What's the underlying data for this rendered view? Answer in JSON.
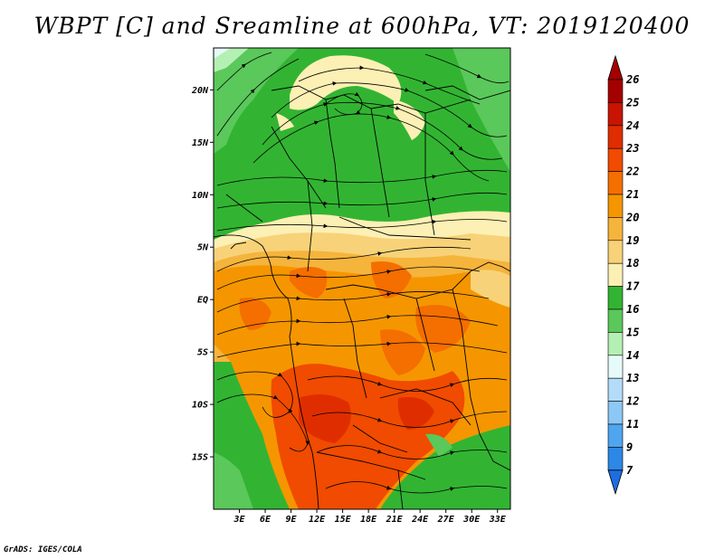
{
  "title": "WBPT [C] and Sreamline at 600hPa, VT: 2019120400",
  "credit": "GrADS: IGES/COLA",
  "map": {
    "lat_ticks": [
      {
        "value": 20,
        "label": "20N"
      },
      {
        "value": 15,
        "label": "15N"
      },
      {
        "value": 10,
        "label": "10N"
      },
      {
        "value": 5,
        "label": "5N"
      },
      {
        "value": 0,
        "label": "EQ"
      },
      {
        "value": -5,
        "label": "5S"
      },
      {
        "value": -10,
        "label": "10S"
      },
      {
        "value": -15,
        "label": "15S"
      }
    ],
    "lon_ticks": [
      {
        "value": 3,
        "label": "3E"
      },
      {
        "value": 6,
        "label": "6E"
      },
      {
        "value": 9,
        "label": "9E"
      },
      {
        "value": 12,
        "label": "12E"
      },
      {
        "value": 15,
        "label": "15E"
      },
      {
        "value": 18,
        "label": "18E"
      },
      {
        "value": 21,
        "label": "21E"
      },
      {
        "value": 24,
        "label": "24E"
      },
      {
        "value": 27,
        "label": "27E"
      },
      {
        "value": 30,
        "label": "30E"
      },
      {
        "value": 33,
        "label": "33E"
      }
    ],
    "lat_range": [
      -20,
      24
    ],
    "lon_range": [
      0,
      34.5
    ]
  },
  "colorbar": {
    "levels": [
      {
        "label": "26",
        "color": "#a50000"
      },
      {
        "label": "25",
        "color": "#c81400"
      },
      {
        "label": "24",
        "color": "#e02d00"
      },
      {
        "label": "23",
        "color": "#f04b00"
      },
      {
        "label": "22",
        "color": "#f56e00"
      },
      {
        "label": "21",
        "color": "#f59600"
      },
      {
        "label": "20",
        "color": "#f5b43c"
      },
      {
        "label": "19",
        "color": "#f8d278"
      },
      {
        "label": "18",
        "color": "#fcf0b4"
      },
      {
        "label": "17",
        "color": "#32b432"
      },
      {
        "label": "16",
        "color": "#5ac85a"
      },
      {
        "label": "15",
        "color": "#b4f0b4"
      },
      {
        "label": "14",
        "color": "#e6fafa"
      },
      {
        "label": "13",
        "color": "#b4dcfa"
      },
      {
        "label": "12",
        "color": "#8cc8f5"
      },
      {
        "label": "11",
        "color": "#50a5f0"
      },
      {
        "label": "9",
        "color": "#2d87e6"
      },
      {
        "label": "7",
        "color": "#1e6ee1"
      }
    ],
    "bottom_color": "#1e6ee1",
    "top_color": "#a50000"
  }
}
